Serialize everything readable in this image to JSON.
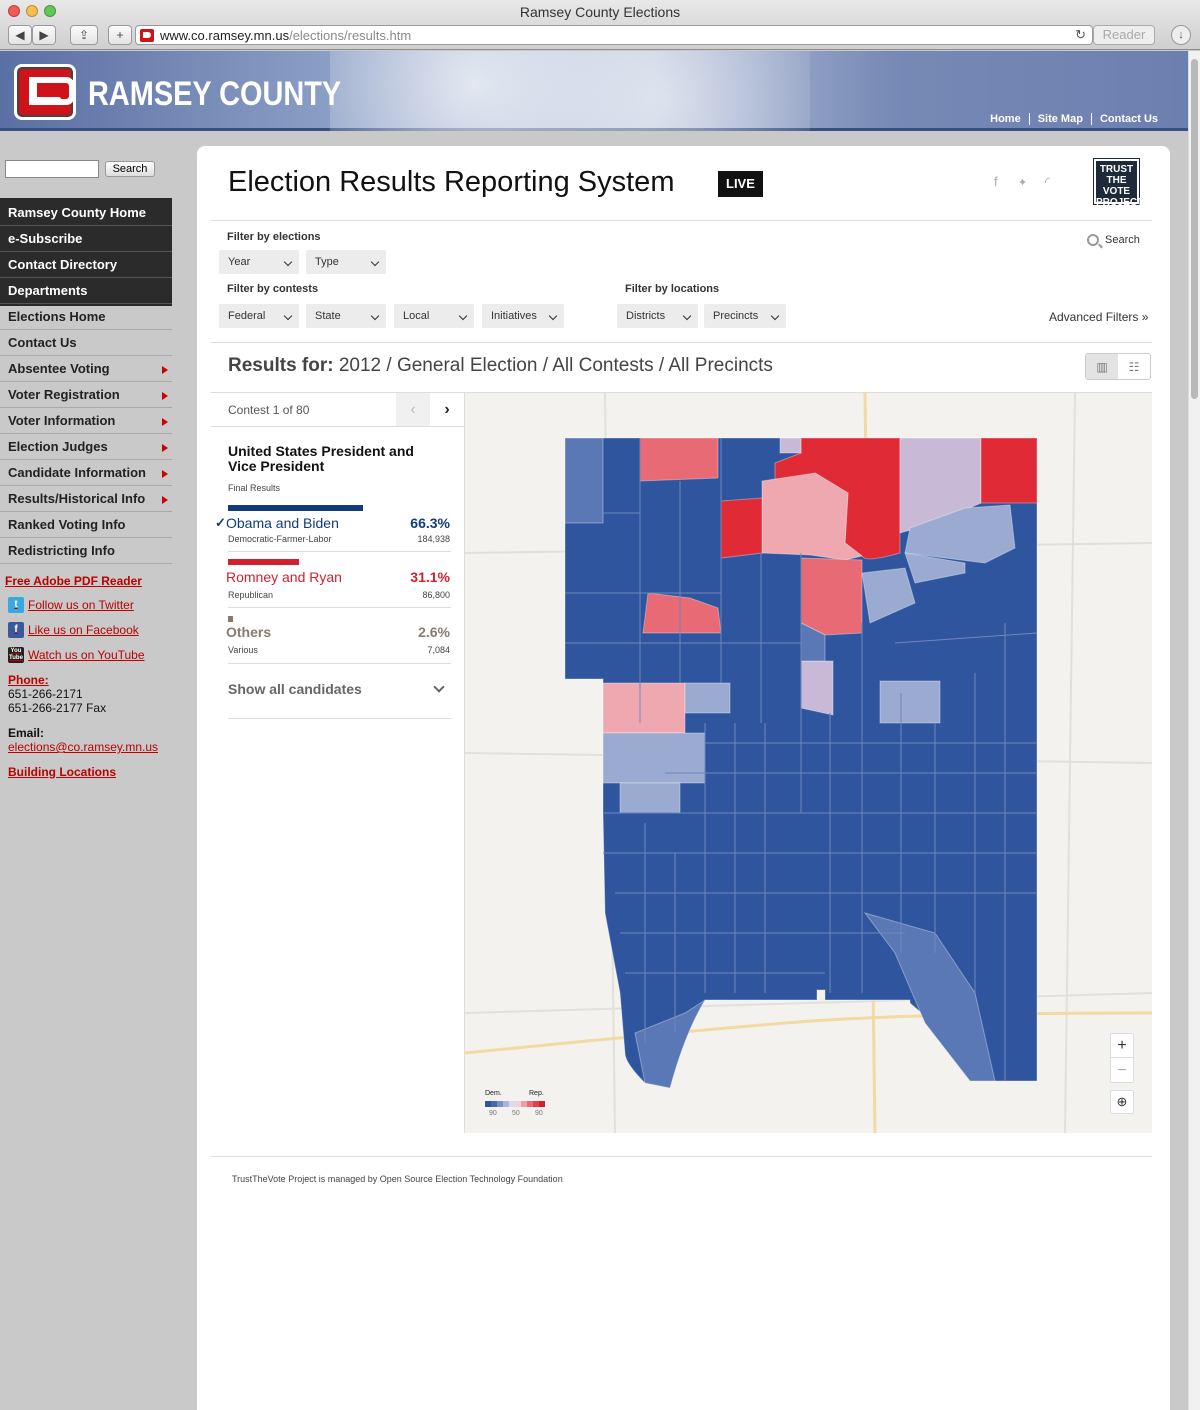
{
  "browser": {
    "window_title": "Ramsey County Elections",
    "url_host": "www.co.ramsey.mn.us",
    "url_path": "/elections/results.htm",
    "reader_label": "Reader"
  },
  "header": {
    "county_name": "RAMSEY COUNTY",
    "links": [
      "Home",
      "Site Map",
      "Contact Us"
    ]
  },
  "sidebar": {
    "search_button": "Search",
    "dark_items": [
      "Ramsey County Home",
      "e-Subscribe",
      "Contact Directory",
      "Departments"
    ],
    "light_items": [
      {
        "label": "Elections Home",
        "arrow": false
      },
      {
        "label": "Contact Us",
        "arrow": false
      },
      {
        "label": "Absentee Voting",
        "arrow": true
      },
      {
        "label": "Voter Registration",
        "arrow": true
      },
      {
        "label": "Voter Information",
        "arrow": true
      },
      {
        "label": "Election Judges",
        "arrow": true
      },
      {
        "label": "Candidate Information",
        "arrow": true
      },
      {
        "label": "Results/Historical Info",
        "arrow": true
      },
      {
        "label": "Ranked Voting Info",
        "arrow": false
      },
      {
        "label": "Redistricting Info",
        "arrow": false
      }
    ],
    "pdf_link": "Free Adobe PDF Reader",
    "twitter": "Follow us on Twitter",
    "facebook": "Like us on Facebook",
    "youtube": "Watch us on YouTube",
    "youtube_icon": "You Tube",
    "phone_label": "Phone:",
    "phone_1": "651-266-2171",
    "phone_2": "651-266-2177 Fax",
    "email_label": "Email:",
    "email": "elections@co.ramsey.mn.us",
    "building": "Building Locations"
  },
  "main": {
    "title": "Election Results Reporting System",
    "live": "LIVE",
    "ttv_logo": "TRUST THE VOTE PROJECT",
    "filter_elections_label": "Filter by elections",
    "filter_contests_label": "Filter by contests",
    "filter_locations_label": "Filter by locations",
    "dd_year": "Year",
    "dd_type": "Type",
    "dd_federal": "Federal",
    "dd_state": "State",
    "dd_local": "Local",
    "dd_initiatives": "Initiatives",
    "dd_districts": "Districts",
    "dd_precincts": "Precincts",
    "search": "Search",
    "advanced": "Advanced Filters",
    "results_for_label": "Results for:",
    "results_for_value": "2012 / General Election / All Contests / All Precincts",
    "contest_count": "Contest 1 of 80",
    "contest_title": "United States President and Vice President",
    "contest_status": "Final Results",
    "show_all": "Show all candidates",
    "footer": "TrustTheVote Project is managed by Open Source Election Technology Foundation"
  },
  "candidates": [
    {
      "name": "Obama and Biden",
      "party": "Democratic-Farmer-Labor",
      "pct": "66.3%",
      "votes": "184,938",
      "color": "#123b7a",
      "winner": true
    },
    {
      "name": "Romney and Ryan",
      "party": "Republican",
      "pct": "31.1%",
      "votes": "86,800",
      "color": "#d2202e",
      "winner": false
    },
    {
      "name": "Others",
      "party": "Various",
      "pct": "2.6%",
      "votes": "7,084",
      "color": "#8a7a6e",
      "winner": false
    }
  ],
  "map": {
    "legend_dem": "Dem.",
    "legend_rep": "Rep.",
    "legend_ticks": [
      "90",
      "50",
      "90"
    ],
    "colors": {
      "dem_strong": "#2f559e",
      "dem_mid": "#5a78b5",
      "dem_light": "#9aaad0",
      "rep_light": "#f0a8b0",
      "rep_mid": "#e86a74",
      "rep_strong": "#e02a36",
      "swing": "#c8b9d6"
    }
  }
}
